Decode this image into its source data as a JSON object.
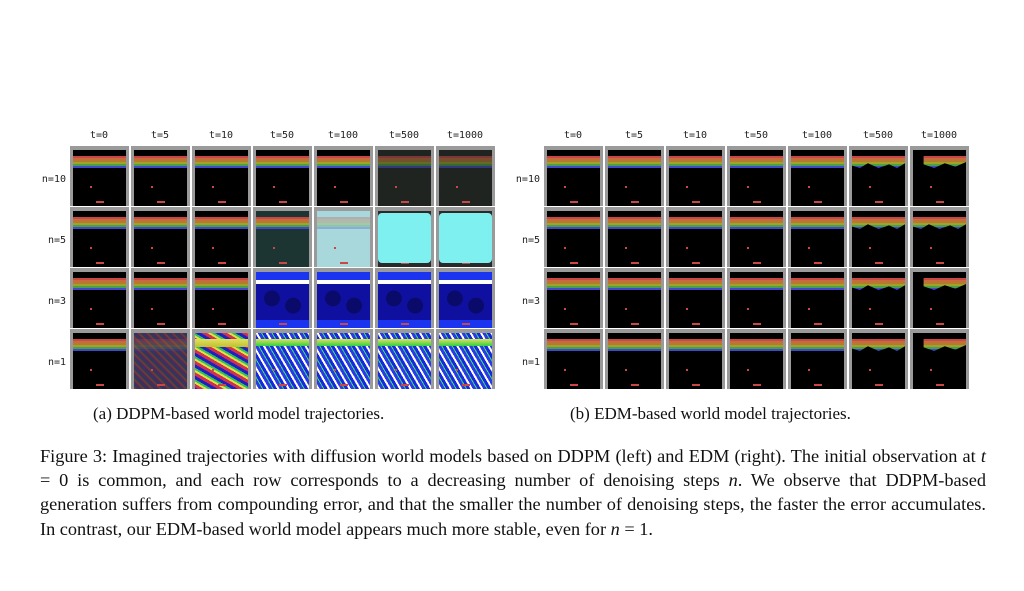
{
  "panel_a": {
    "time_labels": [
      "t=0",
      "t=5",
      "t=10",
      "t=50",
      "t=100",
      "t=500",
      "t=1000"
    ],
    "row_labels": [
      "n=10",
      "n=5",
      "n=3",
      "n=1"
    ],
    "caption_prefix": "(a) ",
    "caption_method": "DDPM",
    "caption_suffix": "-based world model trajectories."
  },
  "panel_b": {
    "time_labels": [
      "t=0",
      "t=5",
      "t=10",
      "t=50",
      "t=100",
      "t=500",
      "t=1000"
    ],
    "row_labels": [
      "n=10",
      "n=5",
      "n=3",
      "n=1"
    ],
    "caption_prefix": "(b) ",
    "caption_method": "EDM",
    "caption_suffix": "-based world model trajectories."
  },
  "figure_caption": {
    "p1": "Figure 3: Imagined trajectories with diffusion world models based on ",
    "m1": "DDPM",
    "p2": " (left) and ",
    "m2": "EDM",
    "p3": " (right). The initial observation at ",
    "v1": "t",
    "p4": " = 0 is common, and each row corresponds to a decreasing number of denoising steps ",
    "v2": "n",
    "p5": ". We observe that ",
    "m3": "DDPM",
    "p6": "-based generation suffers from compounding error, and that the smaller the number of denoising steps, the faster the error accumulates. In contrast, our ",
    "m4": "EDM",
    "p7": "-based world model appears much more stable, even for ",
    "v3": "n",
    "p8": " = 1."
  }
}
